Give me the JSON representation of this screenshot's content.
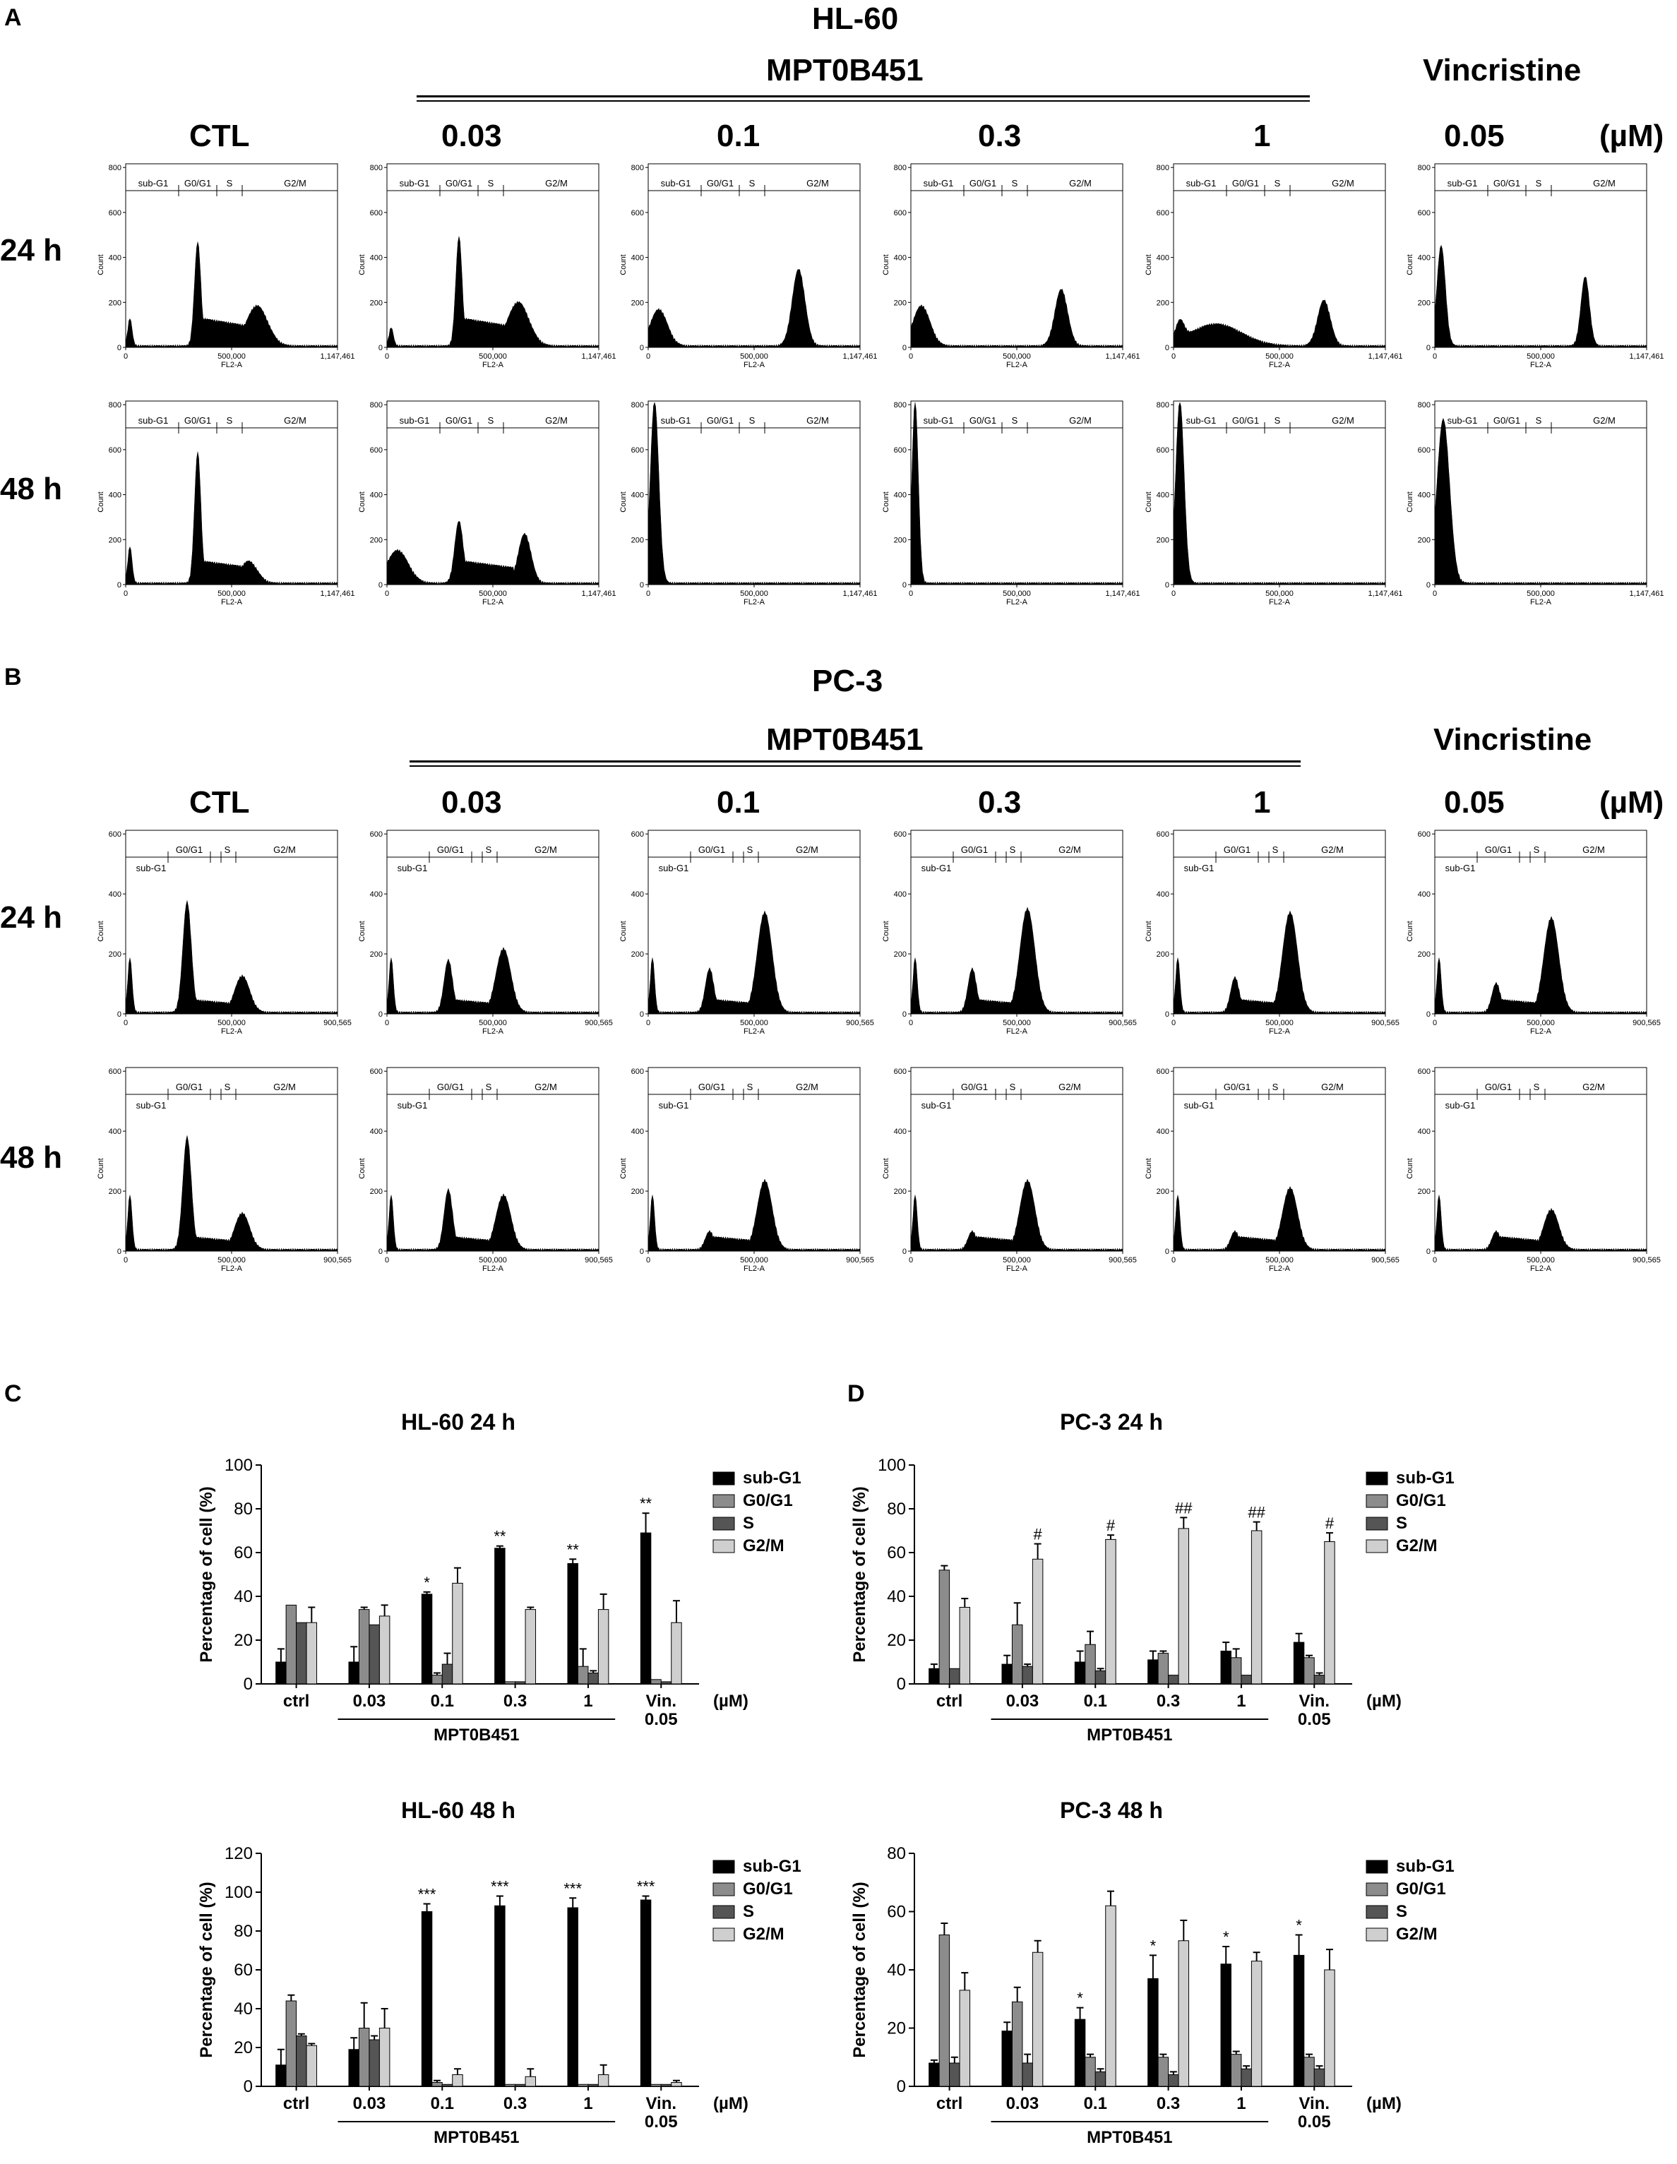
{
  "panels": {
    "A": "A",
    "B": "B",
    "C": "C",
    "D": "D"
  },
  "histA": {
    "title": "HL-60",
    "drug": "MPT0B451",
    "ref": "Vincristine",
    "unit": "(µM)",
    "columns": [
      "CTL",
      "0.03",
      "0.1",
      "0.3",
      "1",
      "0.05"
    ],
    "rows": [
      "24 h",
      "48 h"
    ],
    "xticks": [
      "0",
      "500,000",
      "1,147,461"
    ],
    "yticks": [
      "0",
      "200",
      "400",
      "600",
      "800"
    ],
    "xlabel": "FL2-A",
    "ylabel": "Count",
    "gates": [
      "sub-G1",
      "G0/G1",
      "S",
      "G2/M"
    ]
  },
  "histB": {
    "title": "PC-3",
    "drug": "MPT0B451",
    "ref": "Vincristine",
    "unit": "(µM)",
    "columns": [
      "CTL",
      "0.03",
      "0.1",
      "0.3",
      "1",
      "0.05"
    ],
    "rows": [
      "24 h",
      "48 h"
    ],
    "xticks": [
      "0",
      "500,000",
      "900,565"
    ],
    "yticks": [
      "0",
      "200",
      "400",
      "600"
    ],
    "xlabel": "FL2-A",
    "ylabel": "Count",
    "gates": [
      "G0/G1",
      "S",
      "G2/M",
      "sub-G1"
    ]
  },
  "colors": {
    "subG1": "#000000",
    "G0G1": "#8c8c8c",
    "S": "#555555",
    "G2M": "#cfcfcf"
  },
  "chart_data": [
    {
      "type": "bar",
      "title": "HL-60 24 h",
      "ylabel": "Percentage of cell (%)",
      "ylim": [
        0,
        100
      ],
      "yticks": [
        0,
        20,
        40,
        60,
        80,
        100
      ],
      "categories": [
        "ctrl",
        "0.03",
        "0.1",
        "0.3",
        "1",
        "Vin.\n0.05"
      ],
      "group_label": "MPT0B451",
      "unit": "(µM)",
      "series": [
        {
          "name": "sub-G1",
          "values": [
            10,
            10,
            41,
            62,
            55,
            69
          ],
          "err": [
            6,
            7,
            1,
            1,
            2,
            9
          ]
        },
        {
          "name": "G0/G1",
          "values": [
            36,
            34,
            4,
            1,
            8,
            2
          ],
          "err": [
            0,
            1,
            1,
            0,
            8,
            0
          ]
        },
        {
          "name": "S",
          "values": [
            28,
            27,
            9,
            1,
            5,
            1
          ],
          "err": [
            0,
            0,
            5,
            0,
            1,
            0
          ]
        },
        {
          "name": "G2/M",
          "values": [
            28,
            31,
            46,
            34,
            34,
            28
          ],
          "err": [
            7,
            5,
            7,
            1,
            7,
            10
          ]
        }
      ],
      "sig": [
        {
          "cat": 2,
          "text": "*"
        },
        {
          "cat": 3,
          "text": "**"
        },
        {
          "cat": 4,
          "text": "**"
        },
        {
          "cat": 5,
          "text": "**"
        }
      ]
    },
    {
      "type": "bar",
      "title": "PC-3 24 h",
      "ylabel": "Percentage of cell (%)",
      "ylim": [
        0,
        100
      ],
      "yticks": [
        0,
        20,
        40,
        60,
        80,
        100
      ],
      "categories": [
        "ctrl",
        "0.03",
        "0.1",
        "0.3",
        "1",
        "Vin.\n0.05"
      ],
      "group_label": "MPT0B451",
      "unit": "(µM)",
      "series": [
        {
          "name": "sub-G1",
          "values": [
            7,
            9,
            10,
            11,
            15,
            19
          ],
          "err": [
            2,
            4,
            5,
            4,
            4,
            4
          ]
        },
        {
          "name": "G0/G1",
          "values": [
            52,
            27,
            18,
            14,
            12,
            12
          ],
          "err": [
            2,
            10,
            6,
            1,
            4,
            1
          ]
        },
        {
          "name": "S",
          "values": [
            7,
            8,
            6,
            4,
            4,
            4
          ],
          "err": [
            0,
            1,
            1,
            0,
            0,
            1
          ]
        },
        {
          "name": "G2/M",
          "values": [
            35,
            57,
            66,
            71,
            70,
            65
          ],
          "err": [
            4,
            7,
            2,
            5,
            4,
            4
          ]
        }
      ],
      "sig": [
        {
          "cat": 1,
          "text": "#"
        },
        {
          "cat": 2,
          "text": "#"
        },
        {
          "cat": 3,
          "text": "##"
        },
        {
          "cat": 4,
          "text": "##"
        },
        {
          "cat": 5,
          "text": "#"
        }
      ]
    },
    {
      "type": "bar",
      "title": "HL-60 48 h",
      "ylabel": "Percentage of cell (%)",
      "ylim": [
        0,
        120
      ],
      "yticks": [
        0,
        20,
        40,
        60,
        80,
        100,
        120
      ],
      "categories": [
        "ctrl",
        "0.03",
        "0.1",
        "0.3",
        "1",
        "Vin.\n0.05"
      ],
      "group_label": "MPT0B451",
      "unit": "(µM)",
      "series": [
        {
          "name": "sub-G1",
          "values": [
            11,
            19,
            90,
            93,
            92,
            96
          ],
          "err": [
            8,
            6,
            4,
            5,
            5,
            2
          ]
        },
        {
          "name": "G0/G1",
          "values": [
            44,
            30,
            2,
            1,
            1,
            1
          ],
          "err": [
            3,
            13,
            1,
            0,
            0,
            0
          ]
        },
        {
          "name": "S",
          "values": [
            26,
            24,
            1,
            1,
            1,
            1
          ],
          "err": [
            1,
            2,
            0,
            0,
            0,
            0
          ]
        },
        {
          "name": "G2/M",
          "values": [
            21,
            30,
            6,
            5,
            6,
            2
          ],
          "err": [
            1,
            10,
            3,
            4,
            5,
            1
          ]
        }
      ],
      "sig": [
        {
          "cat": 2,
          "text": "***"
        },
        {
          "cat": 3,
          "text": "***"
        },
        {
          "cat": 4,
          "text": "***"
        },
        {
          "cat": 5,
          "text": "***"
        }
      ]
    },
    {
      "type": "bar",
      "title": "PC-3 48 h",
      "ylabel": "Percentage of cell (%)",
      "ylim": [
        0,
        80
      ],
      "yticks": [
        0,
        20,
        40,
        60,
        80
      ],
      "categories": [
        "ctrl",
        "0.03",
        "0.1",
        "0.3",
        "1",
        "Vin.\n0.05"
      ],
      "group_label": "MPT0B451",
      "unit": "(µM)",
      "series": [
        {
          "name": "sub-G1",
          "values": [
            8,
            19,
            23,
            37,
            42,
            45
          ],
          "err": [
            1,
            3,
            4,
            8,
            6,
            7
          ]
        },
        {
          "name": "G0/G1",
          "values": [
            52,
            29,
            10,
            10,
            11,
            10
          ],
          "err": [
            4,
            5,
            1,
            1,
            1,
            1
          ]
        },
        {
          "name": "S",
          "values": [
            8,
            8,
            5,
            4,
            6,
            6
          ],
          "err": [
            2,
            3,
            1,
            1,
            1,
            1
          ]
        },
        {
          "name": "G2/M",
          "values": [
            33,
            46,
            62,
            50,
            43,
            40
          ],
          "err": [
            6,
            4,
            5,
            7,
            3,
            7
          ]
        }
      ],
      "sig": [
        {
          "cat": 2,
          "text": "*"
        },
        {
          "cat": 3,
          "text": "*"
        },
        {
          "cat": 4,
          "text": "*"
        },
        {
          "cat": 5,
          "text": "*"
        }
      ]
    }
  ]
}
